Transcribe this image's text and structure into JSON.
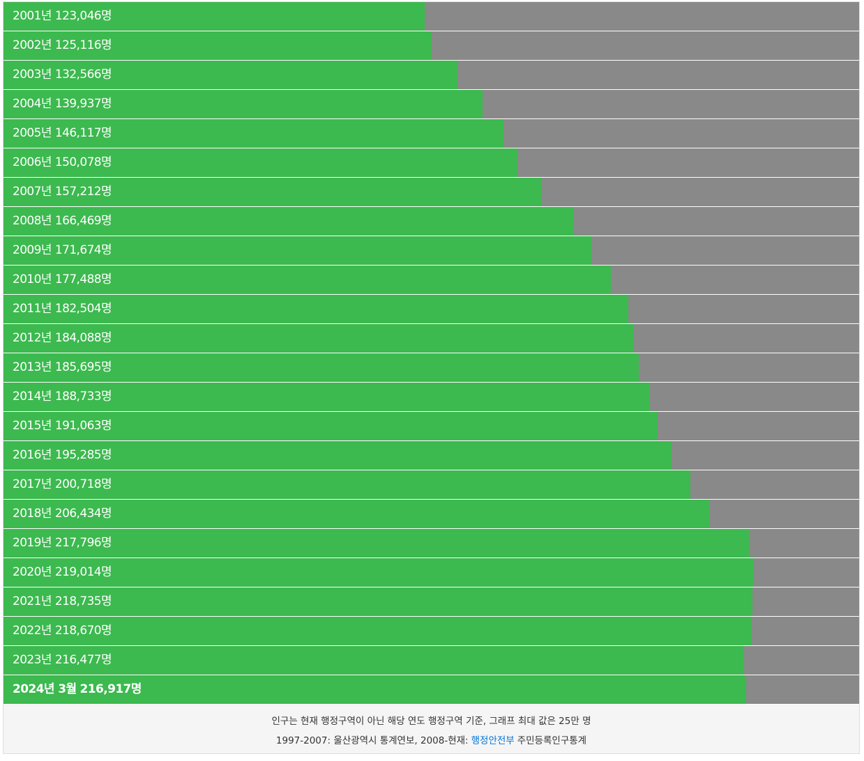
{
  "chart_data": {
    "type": "bar",
    "orientation": "horizontal",
    "color": "#3cb94f",
    "track_color": "#898989",
    "categories": [
      "2001년",
      "2002년",
      "2003년",
      "2004년",
      "2005년",
      "2006년",
      "2007년",
      "2008년",
      "2009년",
      "2010년",
      "2011년",
      "2012년",
      "2013년",
      "2014년",
      "2015년",
      "2016년",
      "2017년",
      "2018년",
      "2019년",
      "2020년",
      "2021년",
      "2022년",
      "2023년",
      "2024년 3월"
    ],
    "values": [
      123046,
      125116,
      132566,
      139937,
      146117,
      150078,
      157212,
      166469,
      171674,
      177488,
      182504,
      184088,
      185695,
      188733,
      191063,
      195285,
      200718,
      206434,
      217796,
      219014,
      218735,
      218670,
      216477,
      216917
    ],
    "value_labels": [
      "123,046명",
      "125,116명",
      "132,566명",
      "139,937명",
      "146,117명",
      "150,078명",
      "157,212명",
      "166,469명",
      "171,674명",
      "177,488명",
      "182,504명",
      "184,088명",
      "185,695명",
      "188,733명",
      "191,063명",
      "195,285명",
      "200,718명",
      "206,434명",
      "217,796명",
      "219,014명",
      "218,735명",
      "218,670명",
      "216,477명",
      "216,917명"
    ],
    "xlim": [
      0,
      250000
    ],
    "note": "인구는 현재 행정구역이 아닌 해당 연도 행정구역 기준, 그래프 최대 값은 25만 명",
    "source_prefix": "1997-2007: 울산광역시 통계연보, 2008-현재:",
    "source_link": "행정안전부",
    "source_suffix": "주민등록인구통계"
  }
}
